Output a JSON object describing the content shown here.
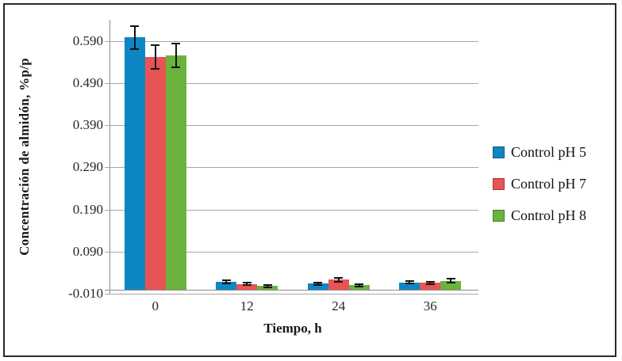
{
  "figure": {
    "background": "#ffffff",
    "border_color": "#2a2a2a",
    "gridline_color": "#a8a8a8",
    "axis_color": "#8c8c8c",
    "error_bar_color": "#141414",
    "text_color": "#26262e"
  },
  "chart_data": {
    "type": "bar",
    "title": "",
    "xlabel": "Tiempo, h",
    "ylabel": "Concentración de almidón, %p/p",
    "categories": [
      "0",
      "12",
      "24",
      "36"
    ],
    "series": [
      {
        "name": "Control pH 5",
        "color": "#0f86c4",
        "values": [
          0.598,
          0.018,
          0.014,
          0.017
        ],
        "errors": [
          0.027,
          0.004,
          0.003,
          0.003
        ]
      },
      {
        "name": "Control pH 7",
        "color": "#e75454",
        "values": [
          0.552,
          0.013,
          0.023,
          0.016
        ],
        "errors": [
          0.028,
          0.003,
          0.004,
          0.003
        ]
      },
      {
        "name": "Control pH 8",
        "color": "#6cb33e",
        "values": [
          0.556,
          0.008,
          0.01,
          0.021
        ],
        "errors": [
          0.028,
          0.003,
          0.003,
          0.004
        ]
      }
    ],
    "ylim": [
      -0.01,
      0.64
    ],
    "yticks": [
      -0.01,
      0.09,
      0.19,
      0.29,
      0.39,
      0.49,
      0.59
    ],
    "ytick_labels": [
      "-0.010",
      "0.090",
      "0.190",
      "0.290",
      "0.390",
      "0.490",
      "0.590"
    ],
    "baseline": 0,
    "grid": true,
    "legend_position": "right"
  }
}
